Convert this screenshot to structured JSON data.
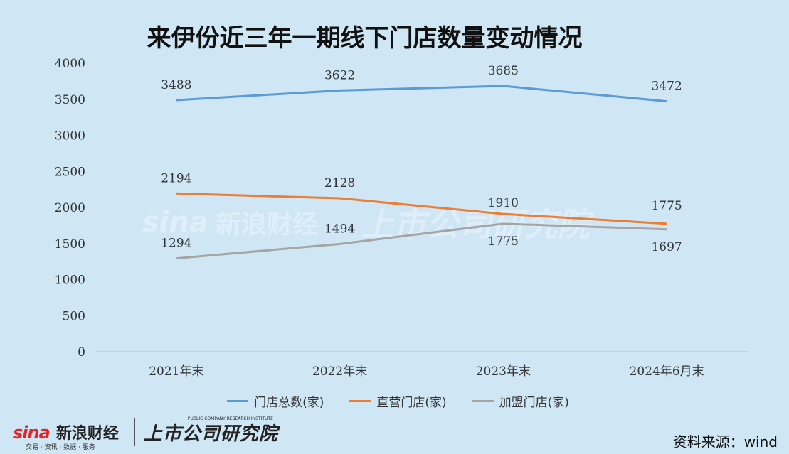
{
  "title": "来伊份近三年一期线下门店数量变动情况",
  "source": "资料来源：wind",
  "logos": {
    "sina_mark": "sina",
    "sina_cn": "新浪财经",
    "sina_sub": "交易 · 资讯 · 数据 · 服务",
    "brand_cn": "上市公司研究院",
    "brand_en": "PUBLIC COMPANY RESEARCH INSTITUTE"
  },
  "chart_data": {
    "type": "line",
    "categories": [
      "2021年末",
      "2022年末",
      "2023年末",
      "2024年6月末"
    ],
    "ylim": [
      0,
      4000
    ],
    "yticks": [
      0,
      500,
      1000,
      1500,
      2000,
      2500,
      3000,
      3500,
      4000
    ],
    "grid": false,
    "legend_position": "bottom",
    "series": [
      {
        "name": "门店总数(家)",
        "values": [
          3488,
          3622,
          3685,
          3472
        ],
        "color": "#5b9bd5"
      },
      {
        "name": "直营门店(家)",
        "values": [
          2194,
          2128,
          1910,
          1775
        ],
        "color": "#ed7d31"
      },
      {
        "name": "加盟门店(家)",
        "values": [
          1294,
          1494,
          1775,
          1697
        ],
        "color": "#a5a5a5"
      }
    ]
  }
}
